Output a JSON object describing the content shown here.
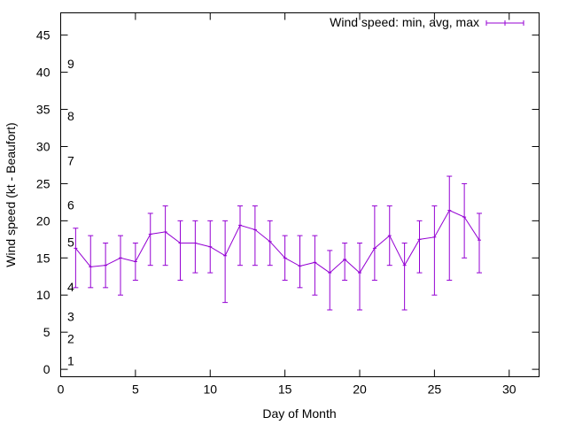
{
  "chart_data": {
    "type": "line",
    "title": "",
    "xlabel": "Day of Month",
    "ylabel": "Wind speed (kt - Beaufort)",
    "xlim": [
      0,
      32
    ],
    "ylim": [
      -1,
      48
    ],
    "xticks": [
      0,
      5,
      10,
      15,
      20,
      25,
      30
    ],
    "yticks": [
      0,
      5,
      10,
      15,
      20,
      25,
      30,
      35,
      40,
      45
    ],
    "grid": false,
    "legend_position": "top-right",
    "series": [
      {
        "name": "Wind speed: min, avg, max",
        "color": "#9400d3",
        "style": "line with error bars",
        "x": [
          1,
          2,
          3,
          4,
          5,
          6,
          7,
          8,
          9,
          10,
          11,
          12,
          13,
          14,
          15,
          16,
          17,
          18,
          19,
          20,
          21,
          22,
          23,
          24,
          25,
          26,
          27,
          28
        ],
        "avg": [
          16.3,
          13.8,
          14.0,
          15.0,
          14.5,
          18.2,
          18.5,
          17.0,
          17.0,
          16.5,
          15.3,
          19.4,
          18.8,
          17.2,
          15.0,
          13.9,
          14.4,
          13.0,
          14.8,
          13.0,
          16.3,
          18.0,
          14.0,
          17.5,
          17.8,
          21.4,
          20.5,
          17.4
        ],
        "min": [
          11,
          11,
          11,
          10,
          12,
          14,
          14,
          12,
          13,
          13,
          9,
          14,
          14,
          14,
          12,
          11,
          10,
          8,
          12,
          8,
          12,
          14,
          8,
          13,
          10,
          12,
          15,
          13
        ],
        "max": [
          19,
          18,
          17,
          18,
          17,
          21,
          22,
          20,
          20,
          20,
          20,
          22,
          22,
          20,
          18,
          18,
          18,
          16,
          17,
          17,
          22,
          22,
          17,
          20,
          22,
          26,
          25,
          21
        ]
      }
    ],
    "beaufort_scale": [
      {
        "label": "1",
        "kt": 1
      },
      {
        "label": "2",
        "kt": 4
      },
      {
        "label": "3",
        "kt": 7
      },
      {
        "label": "4",
        "kt": 11
      },
      {
        "label": "5",
        "kt": 17
      },
      {
        "label": "6",
        "kt": 22
      },
      {
        "label": "7",
        "kt": 28
      },
      {
        "label": "8",
        "kt": 34
      },
      {
        "label": "9",
        "kt": 41
      }
    ]
  }
}
